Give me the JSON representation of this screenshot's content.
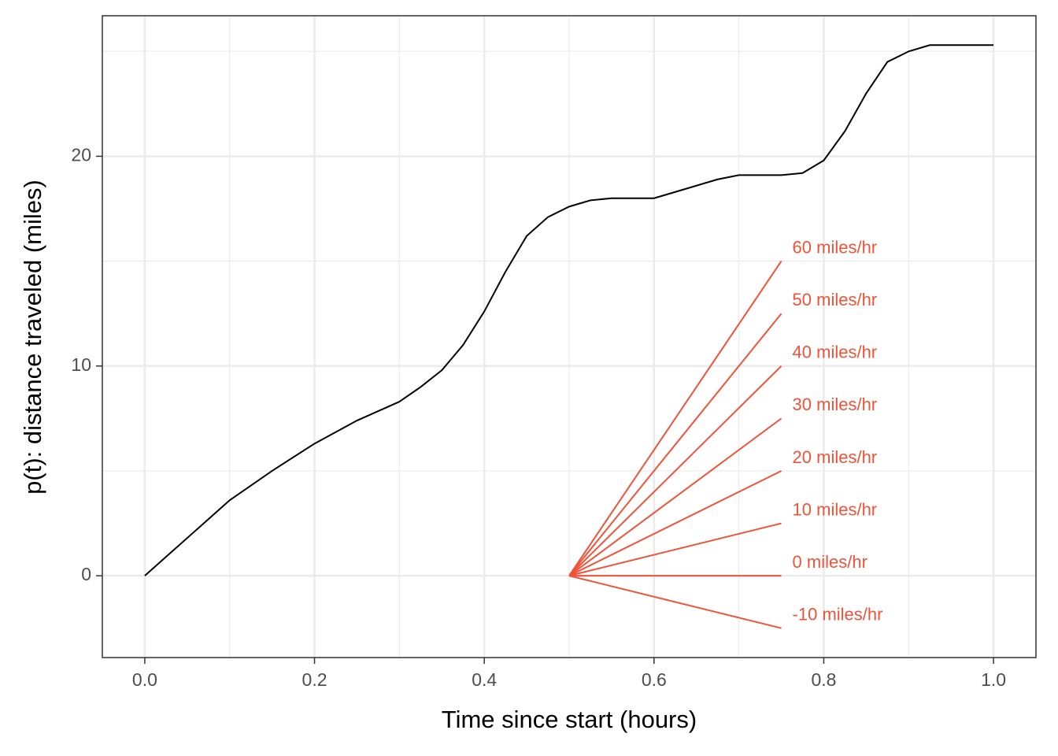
{
  "chart_data": {
    "type": "line",
    "xlabel": "Time since start (hours)",
    "ylabel": "p(t): distance traveled (miles)",
    "xlim": [
      -0.05,
      1.05
    ],
    "ylim": [
      -3.9,
      26.7
    ],
    "xticks": [
      {
        "value": 0,
        "label": "0.0"
      },
      {
        "value": 0.2,
        "label": "0.2"
      },
      {
        "value": 0.4,
        "label": "0.4"
      },
      {
        "value": 0.6,
        "label": "0.6"
      },
      {
        "value": 0.8,
        "label": "0.8"
      },
      {
        "value": 1,
        "label": "1.0"
      }
    ],
    "yticks": [
      0,
      10,
      20
    ],
    "x_minor_grid": [
      0.1,
      0.3,
      0.5,
      0.7,
      0.9
    ],
    "y_minor_grid": [
      5,
      15,
      25
    ],
    "grid": true,
    "series": [
      {
        "color": "#000000",
        "x": [
          0,
          0.025,
          0.05,
          0.075,
          0.1,
          0.15,
          0.2,
          0.25,
          0.3,
          0.325,
          0.35,
          0.375,
          0.4,
          0.425,
          0.45,
          0.475,
          0.5,
          0.525,
          0.55,
          0.575,
          0.6,
          0.625,
          0.65,
          0.675,
          0.7,
          0.725,
          0.75,
          0.775,
          0.8,
          0.825,
          0.85,
          0.875,
          0.9,
          0.925,
          0.95,
          0.975,
          1
        ],
        "values": [
          0,
          0.9,
          1.8,
          2.7,
          3.6,
          5.0,
          6.3,
          7.4,
          8.3,
          9.0,
          9.8,
          11.0,
          12.6,
          14.5,
          16.2,
          17.1,
          17.6,
          17.9,
          18.0,
          18.0,
          18.0,
          18.3,
          18.6,
          18.9,
          19.1,
          19.1,
          19.1,
          19.2,
          19.8,
          21.2,
          23.0,
          24.5,
          25.0,
          25.3,
          25.3,
          25.3,
          25.3
        ]
      }
    ],
    "tangents": [
      {
        "name": "60 miles/hr",
        "color": "#f25237",
        "x": [
          0.5,
          0.75
        ],
        "values": [
          0,
          15
        ]
      },
      {
        "name": "50 miles/hr",
        "color": "#f25237",
        "x": [
          0.5,
          0.75
        ],
        "values": [
          0,
          12.5
        ]
      },
      {
        "name": "40 miles/hr",
        "color": "#f25237",
        "x": [
          0.5,
          0.75
        ],
        "values": [
          0,
          10
        ]
      },
      {
        "name": "30 miles/hr",
        "color": "#f25237",
        "x": [
          0.5,
          0.75
        ],
        "values": [
          0,
          7.5
        ]
      },
      {
        "name": "20 miles/hr",
        "color": "#f25237",
        "x": [
          0.5,
          0.75
        ],
        "values": [
          0,
          5
        ]
      },
      {
        "name": "10 miles/hr",
        "color": "#f25237",
        "x": [
          0.5,
          0.75
        ],
        "values": [
          0,
          2.5
        ]
      },
      {
        "name": "0 miles/hr",
        "color": "#f25237",
        "x": [
          0.5,
          0.75
        ],
        "values": [
          0,
          0
        ]
      },
      {
        "name": "-10 miles/hr",
        "color": "#f25237",
        "x": [
          0.5,
          0.75
        ],
        "values": [
          0,
          -2.5
        ]
      }
    ]
  }
}
